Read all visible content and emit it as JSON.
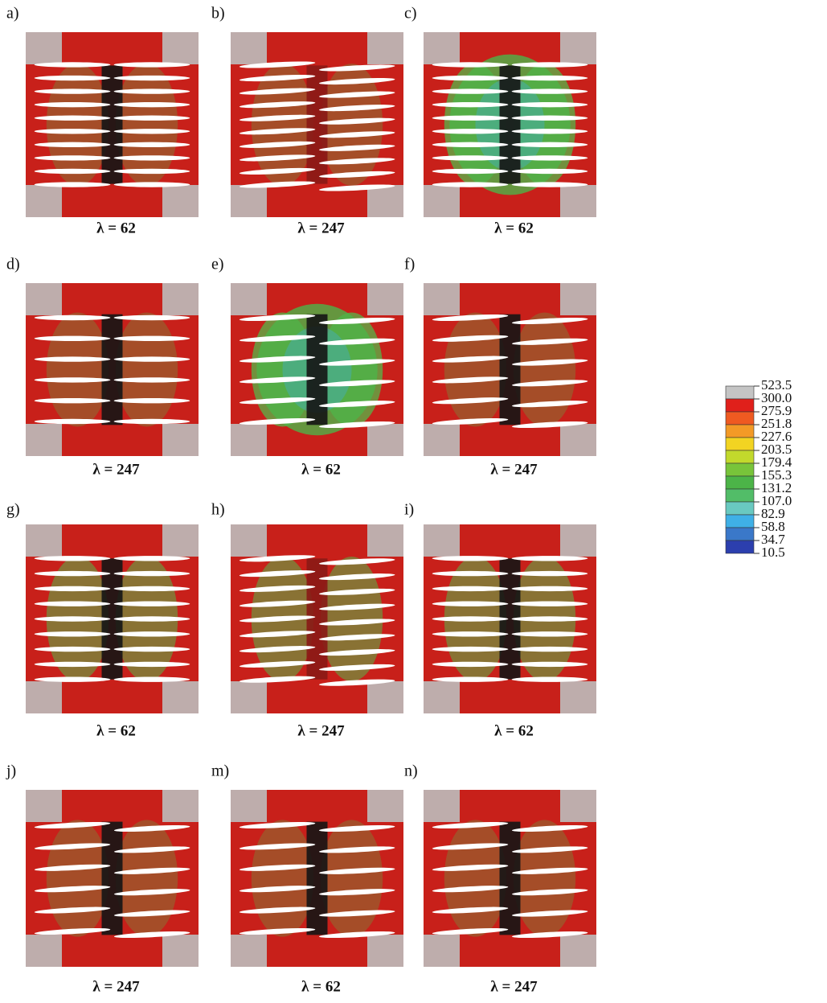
{
  "panels": [
    {
      "label": "a)",
      "caption": "λ = 62"
    },
    {
      "label": "b)",
      "caption": "λ = 247"
    },
    {
      "label": "c)",
      "caption": "λ = 62"
    },
    {
      "label": "d)",
      "caption": "λ = 247"
    },
    {
      "label": "e)",
      "caption": "λ = 62"
    },
    {
      "label": "f)",
      "caption": "λ = 247"
    },
    {
      "label": "g)",
      "caption": "λ = 62"
    },
    {
      "label": "h)",
      "caption": "λ = 247"
    },
    {
      "label": "i)",
      "caption": "λ = 62"
    },
    {
      "label": "j)",
      "caption": "λ = 247"
    },
    {
      "label": "m)",
      "caption": "λ = 62"
    },
    {
      "label": "n)",
      "caption": "λ = 247"
    }
  ],
  "legend": {
    "labels": [
      "523.5",
      "300.0",
      "275.9",
      "251.8",
      "227.6",
      "203.5",
      "179.4",
      "155.3",
      "131.2",
      "107.0",
      "82.9",
      "58.8",
      "34.7",
      "10.5"
    ],
    "colors": [
      "#c4c4c4",
      "#e0201b",
      "#ef5a21",
      "#f39a26",
      "#f2d422",
      "#c2d92c",
      "#78c43a",
      "#4cb448",
      "#52bd68",
      "#69c9c0",
      "#3fb0e6",
      "#3a78c9",
      "#2c3fae"
    ]
  }
}
